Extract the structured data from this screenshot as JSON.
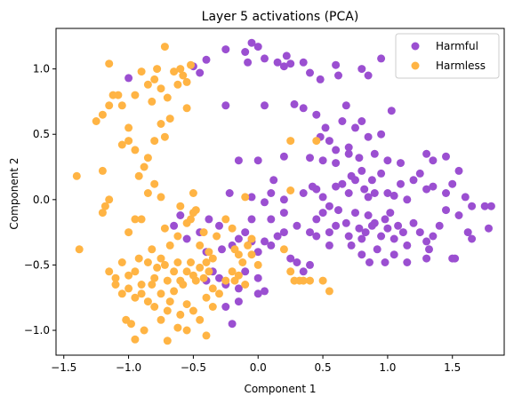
{
  "chart_data": {
    "type": "scatter",
    "title": "Layer 5 activations (PCA)",
    "xlabel": "Component 1",
    "ylabel": "Component 2",
    "xlim": [
      -1.56,
      1.9
    ],
    "ylim": [
      -1.19,
      1.31
    ],
    "xticks": [
      -1.5,
      -1.0,
      -0.5,
      0.0,
      0.5,
      1.0,
      1.5
    ],
    "xtick_labels": [
      "−1.5",
      "−1.0",
      "−0.5",
      "0.0",
      "0.5",
      "1.0",
      "1.5"
    ],
    "yticks": [
      -1.0,
      -0.5,
      0.0,
      0.5,
      1.0
    ],
    "ytick_labels": [
      "−1.0",
      "−0.5",
      "0.0",
      "0.5",
      "1.0"
    ],
    "grid": false,
    "legend_position": "top-right",
    "series": [
      {
        "name": "Harmful",
        "color": "#9b4fd1",
        "points": [
          [
            -1.0,
            0.93
          ],
          [
            -0.5,
            1.02
          ],
          [
            -0.45,
            0.97
          ],
          [
            -0.4,
            1.07
          ],
          [
            -0.25,
            1.15
          ],
          [
            -0.1,
            1.13
          ],
          [
            -0.08,
            1.05
          ],
          [
            -0.05,
            1.2
          ],
          [
            0.0,
            1.17
          ],
          [
            0.05,
            1.08
          ],
          [
            0.15,
            1.05
          ],
          [
            0.2,
            1.02
          ],
          [
            0.22,
            1.1
          ],
          [
            0.25,
            1.04
          ],
          [
            0.35,
            1.05
          ],
          [
            0.4,
            0.97
          ],
          [
            0.48,
            0.92
          ],
          [
            0.6,
            1.03
          ],
          [
            0.62,
            0.95
          ],
          [
            0.8,
            1.0
          ],
          [
            0.85,
            0.95
          ],
          [
            0.95,
            1.08
          ],
          [
            -0.25,
            0.72
          ],
          [
            0.05,
            0.72
          ],
          [
            0.28,
            0.73
          ],
          [
            0.35,
            0.7
          ],
          [
            0.45,
            0.65
          ],
          [
            0.48,
            0.48
          ],
          [
            0.52,
            0.55
          ],
          [
            0.55,
            0.45
          ],
          [
            0.6,
            0.38
          ],
          [
            0.65,
            0.6
          ],
          [
            0.68,
            0.72
          ],
          [
            0.7,
            0.4
          ],
          [
            0.75,
            0.55
          ],
          [
            0.8,
            0.6
          ],
          [
            0.85,
            0.48
          ],
          [
            0.9,
            0.35
          ],
          [
            0.95,
            0.5
          ],
          [
            1.03,
            0.68
          ],
          [
            0.0,
            0.3
          ],
          [
            -0.15,
            0.3
          ],
          [
            0.2,
            0.33
          ],
          [
            0.4,
            0.32
          ],
          [
            0.5,
            0.3
          ],
          [
            0.6,
            0.28
          ],
          [
            0.7,
            0.35
          ],
          [
            0.78,
            0.32
          ],
          [
            1.0,
            0.3
          ],
          [
            1.1,
            0.28
          ],
          [
            1.3,
            0.35
          ],
          [
            1.35,
            0.3
          ],
          [
            1.45,
            0.33
          ],
          [
            1.55,
            0.22
          ],
          [
            -0.22,
            0.05
          ],
          [
            -0.05,
            0.02
          ],
          [
            0.05,
            -0.02
          ],
          [
            0.1,
            0.05
          ],
          [
            0.12,
            0.15
          ],
          [
            0.2,
            0.0
          ],
          [
            0.35,
            0.05
          ],
          [
            0.42,
            0.1
          ],
          [
            0.45,
            0.08
          ],
          [
            0.5,
            0.02
          ],
          [
            0.55,
            -0.05
          ],
          [
            0.6,
            0.1
          ],
          [
            0.65,
            0.12
          ],
          [
            0.7,
            0.05
          ],
          [
            0.72,
            0.18
          ],
          [
            0.75,
            0.15
          ],
          [
            0.8,
            0.22
          ],
          [
            0.82,
            0.08
          ],
          [
            0.85,
            0.02
          ],
          [
            0.88,
            0.15
          ],
          [
            0.9,
            0.05
          ],
          [
            0.95,
            0.2
          ],
          [
            1.0,
            0.05
          ],
          [
            1.05,
            0.03
          ],
          [
            1.1,
            0.12
          ],
          [
            1.15,
            0.0
          ],
          [
            1.2,
            0.15
          ],
          [
            1.25,
            0.2
          ],
          [
            1.3,
            0.08
          ],
          [
            1.35,
            0.1
          ],
          [
            1.45,
            0.05
          ],
          [
            1.5,
            0.12
          ],
          [
            1.6,
            0.02
          ],
          [
            1.65,
            -0.05
          ],
          [
            1.75,
            -0.05
          ],
          [
            1.8,
            -0.05
          ],
          [
            -0.05,
            -0.15
          ],
          [
            0.1,
            -0.15
          ],
          [
            0.2,
            -0.1
          ],
          [
            0.3,
            -0.2
          ],
          [
            0.4,
            -0.25
          ],
          [
            0.45,
            -0.15
          ],
          [
            0.5,
            -0.1
          ],
          [
            0.55,
            -0.25
          ],
          [
            0.6,
            -0.2
          ],
          [
            0.62,
            -0.08
          ],
          [
            0.68,
            -0.18
          ],
          [
            0.7,
            -0.28
          ],
          [
            0.75,
            -0.1
          ],
          [
            0.78,
            -0.22
          ],
          [
            0.8,
            -0.3
          ],
          [
            0.83,
            -0.25
          ],
          [
            0.85,
            -0.12
          ],
          [
            0.88,
            -0.2
          ],
          [
            0.9,
            -0.18
          ],
          [
            0.95,
            -0.28
          ],
          [
            0.98,
            -0.15
          ],
          [
            1.0,
            -0.22
          ],
          [
            1.02,
            -0.1
          ],
          [
            1.05,
            -0.3
          ],
          [
            1.08,
            -0.2
          ],
          [
            1.12,
            -0.25
          ],
          [
            1.15,
            -0.35
          ],
          [
            1.2,
            -0.18
          ],
          [
            1.25,
            -0.25
          ],
          [
            1.3,
            -0.32
          ],
          [
            1.35,
            -0.28
          ],
          [
            1.4,
            -0.2
          ],
          [
            1.45,
            -0.08
          ],
          [
            1.55,
            -0.12
          ],
          [
            1.62,
            -0.25
          ],
          [
            1.65,
            -0.3
          ],
          [
            1.78,
            -0.22
          ],
          [
            0.45,
            -0.28
          ],
          [
            0.55,
            -0.35
          ],
          [
            0.72,
            -0.35
          ],
          [
            0.8,
            -0.42
          ],
          [
            0.86,
            -0.48
          ],
          [
            0.92,
            -0.38
          ],
          [
            0.98,
            -0.48
          ],
          [
            1.05,
            -0.42
          ],
          [
            1.15,
            -0.48
          ],
          [
            1.3,
            -0.45
          ],
          [
            1.32,
            -0.38
          ],
          [
            1.5,
            -0.45
          ],
          [
            1.52,
            -0.45
          ],
          [
            -0.65,
            -0.2
          ],
          [
            -0.6,
            -0.12
          ],
          [
            -0.55,
            -0.3
          ],
          [
            -0.45,
            -0.25
          ],
          [
            -0.4,
            -0.4
          ],
          [
            -0.38,
            -0.15
          ],
          [
            -0.3,
            -0.2
          ],
          [
            -0.28,
            -0.38
          ],
          [
            -0.2,
            -0.35
          ],
          [
            -0.15,
            -0.3
          ],
          [
            -0.1,
            -0.25
          ],
          [
            -0.05,
            -0.32
          ],
          [
            0.0,
            -0.4
          ],
          [
            0.05,
            -0.32
          ],
          [
            0.1,
            -0.35
          ],
          [
            0.15,
            -0.28
          ],
          [
            0.2,
            -0.25
          ],
          [
            0.25,
            -0.45
          ],
          [
            0.3,
            -0.48
          ],
          [
            0.35,
            -0.55
          ],
          [
            0.4,
            -0.5
          ],
          [
            -0.4,
            -0.62
          ],
          [
            -0.35,
            -0.55
          ],
          [
            -0.3,
            -0.6
          ],
          [
            -0.25,
            -0.65
          ],
          [
            -0.15,
            -0.68
          ],
          [
            -0.1,
            -0.55
          ],
          [
            0.0,
            -0.6
          ],
          [
            0.05,
            -0.7
          ],
          [
            0.0,
            -0.72
          ],
          [
            -0.15,
            -0.78
          ],
          [
            -0.25,
            -0.82
          ],
          [
            -0.2,
            -0.95
          ]
        ]
      },
      {
        "name": "Harmless",
        "color": "#ffb444",
        "points": [
          [
            -1.4,
            0.18
          ],
          [
            -1.2,
            0.65
          ],
          [
            -1.25,
            0.6
          ],
          [
            -1.12,
            0.8
          ],
          [
            -1.15,
            0.72
          ],
          [
            -1.05,
            0.72
          ],
          [
            -1.0,
            0.55
          ],
          [
            -1.05,
            0.42
          ],
          [
            -1.08,
            0.8
          ],
          [
            -1.15,
            1.04
          ],
          [
            -0.9,
            0.98
          ],
          [
            -0.95,
            0.8
          ],
          [
            -0.85,
            0.88
          ],
          [
            -0.82,
            0.75
          ],
          [
            -0.8,
            0.92
          ],
          [
            -0.78,
            1.0
          ],
          [
            -0.75,
            0.85
          ],
          [
            -0.72,
            1.17
          ],
          [
            -0.7,
            0.78
          ],
          [
            -0.65,
            0.98
          ],
          [
            -0.62,
            0.88
          ],
          [
            -0.6,
            1.0
          ],
          [
            -0.58,
            0.95
          ],
          [
            -0.55,
            0.9
          ],
          [
            -0.52,
            1.03
          ],
          [
            -0.55,
            0.7
          ],
          [
            -0.68,
            0.62
          ],
          [
            -0.75,
            0.58
          ],
          [
            -0.72,
            0.48
          ],
          [
            -0.8,
            0.45
          ],
          [
            -0.85,
            0.32
          ],
          [
            -0.95,
            0.38
          ],
          [
            -1.0,
            0.45
          ],
          [
            -0.92,
            0.18
          ],
          [
            -0.88,
            0.25
          ],
          [
            -0.8,
            0.12
          ],
          [
            -0.75,
            0.02
          ],
          [
            -0.85,
            0.05
          ],
          [
            -1.2,
            0.22
          ],
          [
            -1.15,
            0.0
          ],
          [
            -1.2,
            -0.1
          ],
          [
            -1.18,
            -0.05
          ],
          [
            -1.0,
            -0.25
          ],
          [
            -0.95,
            -0.15
          ],
          [
            -0.9,
            -0.15
          ],
          [
            -0.72,
            -0.22
          ],
          [
            -0.68,
            -0.35
          ],
          [
            -0.62,
            -0.28
          ],
          [
            -0.55,
            -0.18
          ],
          [
            -0.5,
            -0.1
          ],
          [
            -0.48,
            -0.08
          ],
          [
            -0.45,
            -0.35
          ],
          [
            -0.42,
            -0.25
          ],
          [
            -0.38,
            -0.4
          ],
          [
            -0.35,
            -0.45
          ],
          [
            -0.32,
            -0.28
          ],
          [
            -0.25,
            -0.15
          ],
          [
            -0.2,
            -0.22
          ],
          [
            -0.18,
            -0.38
          ],
          [
            -0.15,
            -0.42
          ],
          [
            -0.12,
            -0.48
          ],
          [
            -0.08,
            -0.35
          ],
          [
            -0.05,
            -0.42
          ],
          [
            0.0,
            -0.5
          ],
          [
            -0.05,
            -0.3
          ],
          [
            0.2,
            -0.38
          ],
          [
            0.25,
            -0.55
          ],
          [
            0.28,
            -0.62
          ],
          [
            0.32,
            -0.62
          ],
          [
            0.35,
            -0.62
          ],
          [
            0.4,
            -0.62
          ],
          [
            0.5,
            -0.62
          ],
          [
            0.55,
            -0.7
          ],
          [
            -1.38,
            -0.38
          ],
          [
            -1.15,
            -0.55
          ],
          [
            -1.1,
            -0.6
          ],
          [
            -1.05,
            -0.48
          ],
          [
            -1.0,
            -0.58
          ],
          [
            -0.95,
            -0.55
          ],
          [
            -0.92,
            -0.45
          ],
          [
            -0.9,
            -0.65
          ],
          [
            -0.85,
            -0.48
          ],
          [
            -0.82,
            -0.38
          ],
          [
            -0.8,
            -0.6
          ],
          [
            -0.78,
            -0.52
          ],
          [
            -0.75,
            -0.45
          ],
          [
            -0.72,
            -0.5
          ],
          [
            -0.7,
            -0.62
          ],
          [
            -0.65,
            -0.55
          ],
          [
            -0.62,
            -0.48
          ],
          [
            -0.6,
            -0.62
          ],
          [
            -0.58,
            -0.65
          ],
          [
            -0.55,
            -0.55
          ],
          [
            -0.52,
            -0.48
          ],
          [
            -0.5,
            -0.58
          ],
          [
            -0.48,
            -0.62
          ],
          [
            -0.45,
            -0.52
          ],
          [
            -0.42,
            -0.6
          ],
          [
            -0.4,
            -0.48
          ],
          [
            -0.38,
            -0.55
          ],
          [
            -0.35,
            -0.68
          ],
          [
            -0.3,
            -0.72
          ],
          [
            -0.25,
            -0.62
          ],
          [
            -0.2,
            -0.55
          ],
          [
            -0.18,
            -0.62
          ],
          [
            -0.15,
            -0.58
          ],
          [
            -0.1,
            -0.65
          ],
          [
            -1.1,
            -0.65
          ],
          [
            -1.05,
            -0.72
          ],
          [
            -1.0,
            -0.68
          ],
          [
            -0.95,
            -0.75
          ],
          [
            -0.9,
            -0.72
          ],
          [
            -0.85,
            -0.78
          ],
          [
            -0.82,
            -0.65
          ],
          [
            -0.8,
            -0.82
          ],
          [
            -0.75,
            -0.72
          ],
          [
            -0.7,
            -0.85
          ],
          [
            -0.68,
            -0.78
          ],
          [
            -0.65,
            -0.7
          ],
          [
            -0.6,
            -0.88
          ],
          [
            -0.55,
            -0.8
          ],
          [
            -0.5,
            -0.85
          ],
          [
            -0.45,
            -0.92
          ],
          [
            -0.4,
            -0.75
          ],
          [
            -0.35,
            -0.82
          ],
          [
            -1.02,
            -0.92
          ],
          [
            -0.98,
            -0.95
          ],
          [
            -0.95,
            -1.07
          ],
          [
            -0.88,
            -1.0
          ],
          [
            -0.75,
            -0.92
          ],
          [
            -0.7,
            -1.08
          ],
          [
            -0.62,
            -0.98
          ],
          [
            -0.55,
            -1.0
          ],
          [
            -0.4,
            -1.04
          ],
          [
            0.25,
            0.45
          ],
          [
            0.45,
            0.45
          ],
          [
            0.25,
            0.07
          ],
          [
            -0.1,
            0.02
          ],
          [
            -0.5,
            0.05
          ],
          [
            -0.6,
            -0.05
          ],
          [
            -0.52,
            -0.15
          ]
        ]
      }
    ]
  }
}
